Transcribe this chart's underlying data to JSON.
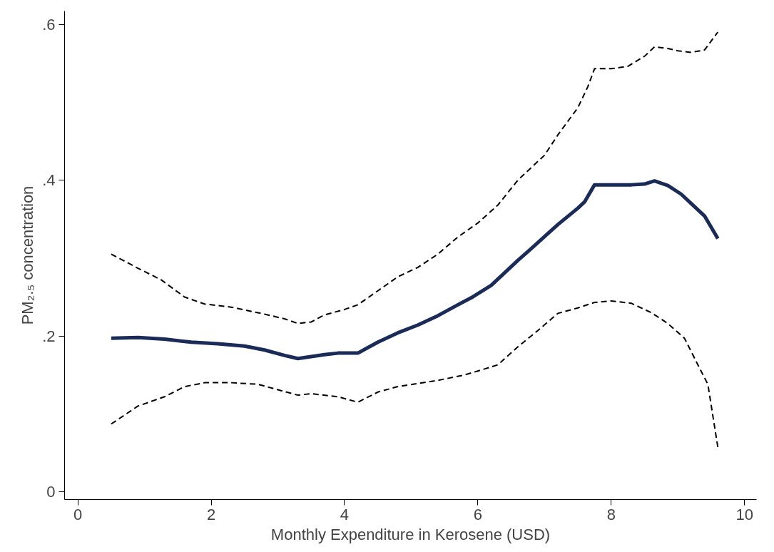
{
  "chart_data": {
    "type": "line",
    "xlabel": "Monthly Expenditure in Kerosene (USD)",
    "ylabel": "PM₂.₅ concentration",
    "xlim": [
      -0.2,
      10.18
    ],
    "ylim": [
      -0.01,
      0.617
    ],
    "xticks": [
      0,
      2,
      4,
      6,
      8,
      10
    ],
    "yticks": [
      0,
      {
        "value": 0.2,
        "label": ".2"
      },
      {
        "value": 0.4,
        "label": ".4"
      },
      {
        "value": 0.6,
        "label": ".6"
      }
    ],
    "marker": "none",
    "series": [
      {
        "color": "#1a2b57",
        "line_style": "solid",
        "x": [
          0.5,
          0.9,
          1.3,
          1.7,
          2.1,
          2.5,
          2.8,
          3.1,
          3.3,
          3.7,
          3.9,
          4.2,
          4.5,
          4.8,
          5.1,
          5.4,
          5.7,
          5.9,
          6.2,
          6.4,
          6.6,
          6.8,
          7.2,
          7.5,
          7.6,
          7.75,
          8.0,
          8.3,
          8.5,
          8.65,
          8.85,
          9.05,
          9.2,
          9.4,
          9.6
        ],
        "values": [
          0.197,
          0.198,
          0.196,
          0.192,
          0.19,
          0.187,
          0.182,
          0.175,
          0.171,
          0.176,
          0.178,
          0.178,
          0.192,
          0.204,
          0.214,
          0.226,
          0.24,
          0.249,
          0.265,
          0.281,
          0.297,
          0.312,
          0.343,
          0.364,
          0.372,
          0.394,
          0.394,
          0.394,
          0.395,
          0.399,
          0.393,
          0.382,
          0.37,
          0.354,
          0.325
        ]
      },
      {
        "color": "#000000",
        "line_style": "dashed",
        "x": [
          0.5,
          0.9,
          1.25,
          1.6,
          1.9,
          2.3,
          2.8,
          3.1,
          3.3,
          3.5,
          3.7,
          4.0,
          4.2,
          4.5,
          4.8,
          5.1,
          5.4,
          5.7,
          6.0,
          6.3,
          6.6,
          7.0,
          7.2,
          7.5,
          7.65,
          7.75,
          8.0,
          8.25,
          8.5,
          8.65,
          8.85,
          9.0,
          9.2,
          9.4,
          9.6
        ],
        "values": [
          0.305,
          0.287,
          0.272,
          0.25,
          0.241,
          0.237,
          0.228,
          0.222,
          0.216,
          0.218,
          0.227,
          0.234,
          0.24,
          0.258,
          0.276,
          0.288,
          0.305,
          0.327,
          0.345,
          0.368,
          0.4,
          0.432,
          0.458,
          0.493,
          0.52,
          0.543,
          0.543,
          0.546,
          0.559,
          0.571,
          0.569,
          0.566,
          0.564,
          0.567,
          0.59
        ]
      },
      {
        "color": "#000000",
        "line_style": "dashed",
        "x": [
          0.5,
          0.9,
          1.3,
          1.6,
          1.9,
          2.3,
          2.7,
          3.0,
          3.3,
          3.5,
          3.9,
          4.2,
          4.5,
          4.8,
          5.1,
          5.4,
          5.8,
          6.0,
          6.3,
          6.6,
          6.9,
          7.2,
          7.5,
          7.75,
          8.0,
          8.3,
          8.6,
          8.85,
          9.1,
          9.3,
          9.45,
          9.6
        ],
        "values": [
          0.087,
          0.11,
          0.122,
          0.135,
          0.14,
          0.14,
          0.138,
          0.131,
          0.124,
          0.126,
          0.122,
          0.115,
          0.128,
          0.135,
          0.139,
          0.143,
          0.15,
          0.155,
          0.163,
          0.186,
          0.207,
          0.229,
          0.236,
          0.243,
          0.245,
          0.242,
          0.23,
          0.216,
          0.197,
          0.163,
          0.138,
          0.057
        ]
      }
    ]
  }
}
